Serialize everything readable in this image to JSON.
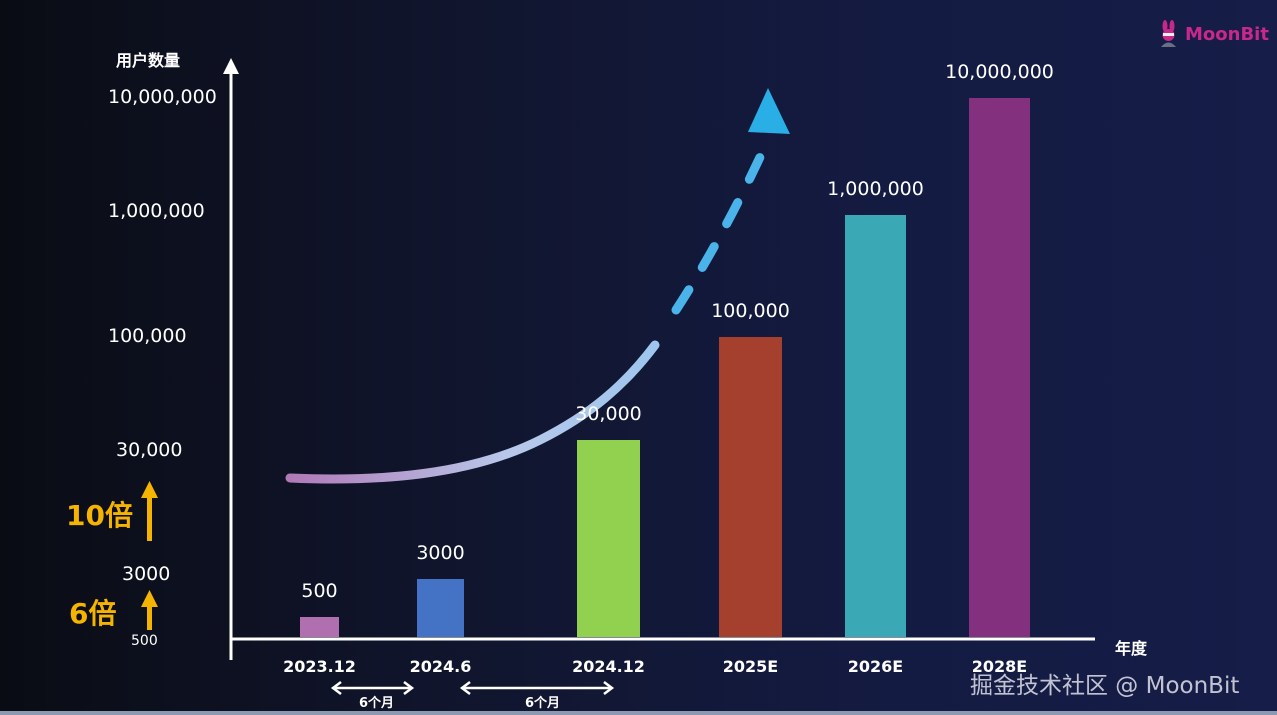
{
  "brand": {
    "name": "MoonBit",
    "color": "#c8288a"
  },
  "watermark": "掘金技术社区 @ MoonBit",
  "chart_data": {
    "type": "bar",
    "ylabel": "用户数量",
    "xlabel": "年度",
    "y_scale": "log (non-uniform)",
    "y_ticks": [
      "10,000,000",
      "1,000,000",
      "100,000",
      "30,000",
      "3000",
      "500"
    ],
    "categories": [
      "2023.12",
      "2024.6",
      "2024.12",
      "2025E",
      "2026E",
      "2028E"
    ],
    "values": [
      500,
      3000,
      30000,
      100000,
      1000000,
      10000000
    ],
    "data_labels": [
      "500",
      "3000",
      "30,000",
      "100,000",
      "1,000,000",
      "10,000,000"
    ],
    "colors": [
      "#b070b0",
      "#4472c4",
      "#92d050",
      "#a5402e",
      "#3aa9b5",
      "#83307f"
    ],
    "growth_annotations": [
      {
        "label": "6倍",
        "from": "500",
        "to": "3000"
      },
      {
        "label": "10倍",
        "from": "3000",
        "to": "30,000"
      }
    ],
    "interval_annotations": [
      {
        "label": "6个月",
        "from": "2023.12",
        "to": "2024.6"
      },
      {
        "label": "6个月",
        "from": "2024.6",
        "to": "2024.12"
      }
    ],
    "trend_arrow_color": "#29aee6",
    "legend": "none",
    "grid": false
  }
}
